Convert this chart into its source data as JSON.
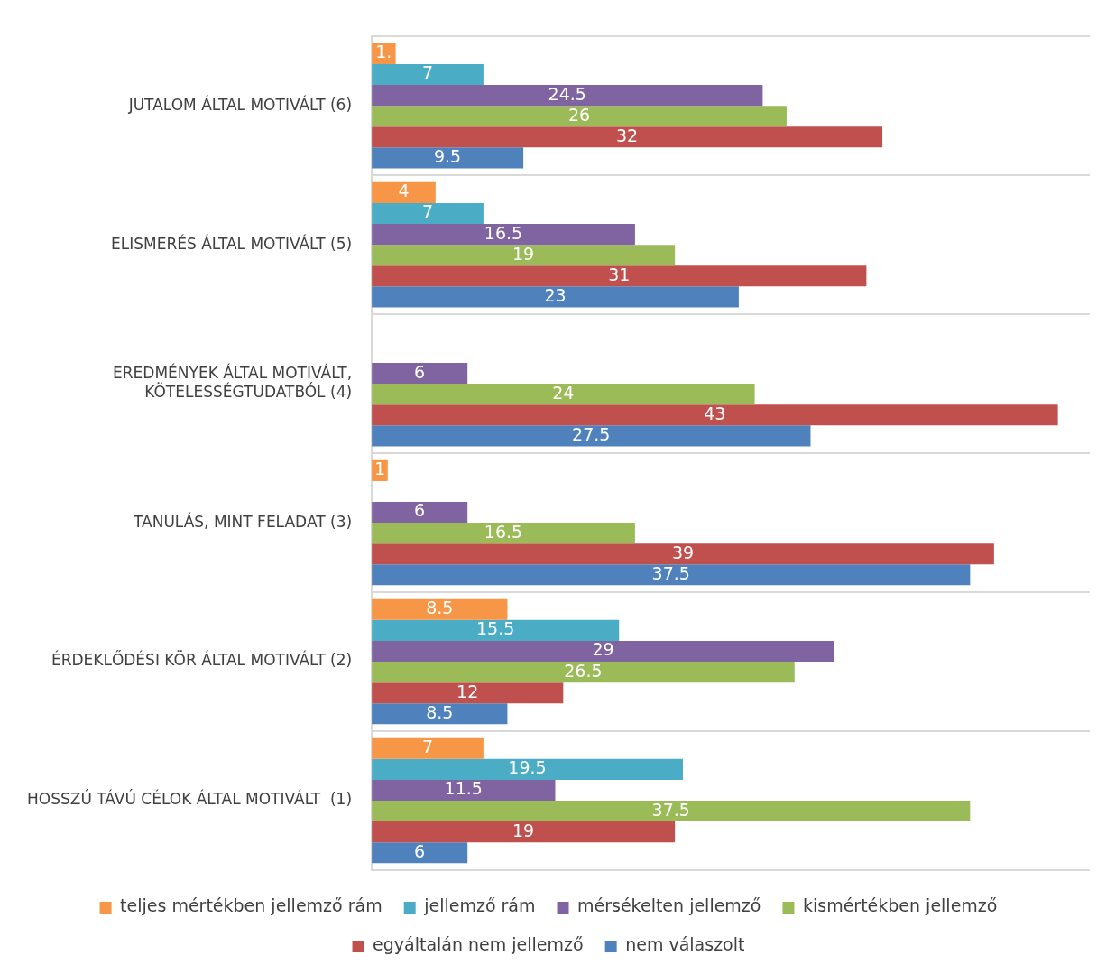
{
  "chart_data": {
    "type": "bar",
    "orientation": "horizontal",
    "categories": [
      "JUTALOM ÁLTAL MOTIVÁLT (6)",
      "ELISMERÉS ÁLTAL MOTIVÁLT (5)",
      "EREDMÉNYEK ÁLTAL MOTIVÁLT,\nKÖTELESSÉGTUDATBÓL (4)",
      "TANULÁS, MINT FELADAT (3)",
      "ÉRDEKLŐDÉSI KÖR ÁLTAL MOTIVÁLT (2)",
      "HOSSZÚ TÁVÚ CÉLOK ÁLTAL MOTIVÁLT  (1)"
    ],
    "series": [
      {
        "name": "teljes mértékben jellemző rám",
        "color": "#f79646",
        "values": [
          1.5,
          4,
          null,
          1,
          8.5,
          7
        ],
        "value_labels": [
          "1.",
          "4",
          null,
          "1",
          "8.5",
          "7"
        ]
      },
      {
        "name": "jellemző rám",
        "color": "#4bacc6",
        "values": [
          7,
          7,
          null,
          null,
          15.5,
          19.5
        ],
        "value_labels": [
          "7",
          "7",
          null,
          null,
          "15.5",
          "19.5"
        ]
      },
      {
        "name": "mérsékelten jellemző",
        "color": "#8064a2",
        "values": [
          24.5,
          16.5,
          6,
          6,
          29,
          11.5
        ],
        "value_labels": [
          "24.5",
          "16.5",
          "6",
          "6",
          "29",
          "11.5"
        ]
      },
      {
        "name": "kismértékben jellemző",
        "color": "#9bbb59",
        "values": [
          26,
          19,
          24,
          16.5,
          26.5,
          37.5
        ],
        "value_labels": [
          "26",
          "19",
          "24",
          "16.5",
          "26.5",
          "37.5"
        ]
      },
      {
        "name": "egyáltalán nem jellemző",
        "color": "#c0504d",
        "values": [
          32,
          31,
          43,
          39,
          12,
          19
        ],
        "value_labels": [
          "32",
          "31",
          "43",
          "39",
          "12",
          "19"
        ]
      },
      {
        "name": "nem válaszolt",
        "color": "#4f81bd",
        "values": [
          9.5,
          23,
          27.5,
          37.5,
          8.5,
          6
        ],
        "value_labels": [
          "9.5",
          "23",
          "27.5",
          "37.5",
          "8.5",
          "6"
        ]
      }
    ],
    "xlim": [
      0,
      45
    ],
    "tick_labels": "y",
    "grid": "y",
    "legend": "bottom"
  }
}
